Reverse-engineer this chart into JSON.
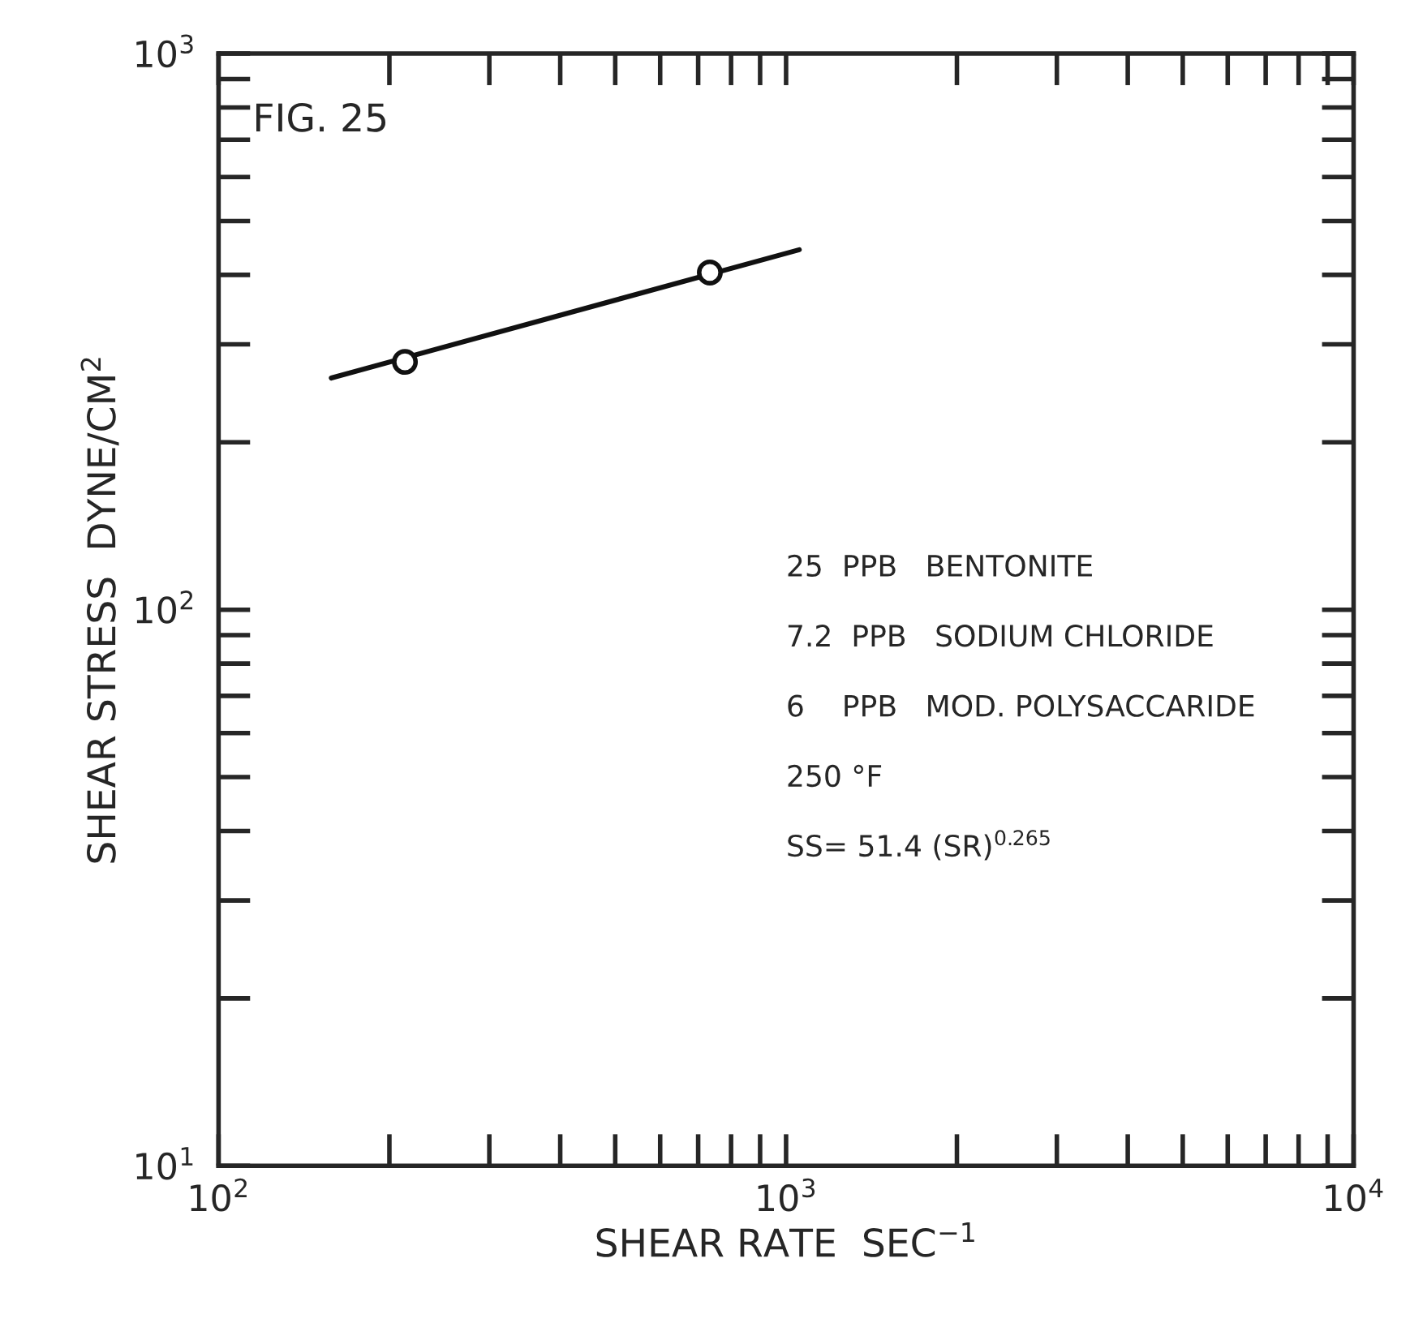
{
  "chart_data": {
    "type": "line",
    "xlabel": "SHEAR RATE  SEC$^{−1}$",
    "ylabel": "SHEAR STRESS  DYNE/CM$^{2}$",
    "log": "xy",
    "grid": false,
    "line_style": "solid",
    "xlim": [
      100,
      10000
    ],
    "ylim": [
      10,
      1000
    ],
    "xticks": [
      {
        "value": 100,
        "label": "10$^{2}$"
      },
      {
        "value": 1000,
        "label": "10$^{3}$"
      },
      {
        "value": 10000,
        "label": "10$^{4}$"
      }
    ],
    "yticks": [
      {
        "value": 10,
        "label": "10$^{1}$"
      },
      {
        "value": 100,
        "label": "10$^{2}$"
      },
      {
        "value": 1000,
        "label": "10$^{3}$"
      }
    ],
    "series": [
      {
        "color": "#111111",
        "marker": "none",
        "x": [
          158,
          1055
        ],
        "values": [
          261,
          444
        ]
      },
      {
        "type": "scatter",
        "color": "#111111",
        "marker": "circle",
        "x": [
          213,
          734
        ],
        "values": [
          279,
          404
        ]
      }
    ],
    "annotations": [
      "FIG. 25",
      "25  PPB   BENTONITE",
      "7.2  PPB   SODIUM CHLORIDE",
      "6    PPB   MOD. POLYSACCARIDE",
      "250 °F",
      "SS= 51.4 (SR)$^{0.265}$"
    ]
  }
}
